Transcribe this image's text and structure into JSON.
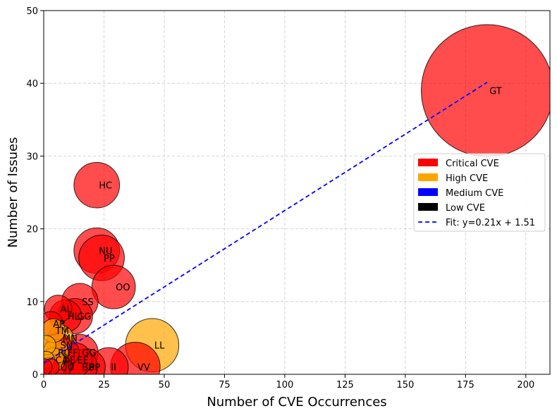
{
  "chart_data": {
    "type": "scatter",
    "variant": "bubble",
    "title": "",
    "xlabel": "Number of CVE Occurrences",
    "ylabel": "Number of Issues",
    "xlim": [
      0,
      210
    ],
    "ylim": [
      0,
      50
    ],
    "xticks": [
      0,
      25,
      50,
      75,
      100,
      125,
      150,
      175,
      200
    ],
    "yticks": [
      0,
      10,
      20,
      30,
      40,
      50
    ],
    "grid": true,
    "legend_position": "center-right",
    "colors": {
      "critical": "#ff0000",
      "high": "#ffa500",
      "medium": "#0000ff",
      "low": "#000000",
      "fit": "#0000ff"
    },
    "legend": [
      {
        "label": "Critical CVE",
        "color": "#ff0000",
        "kind": "patch"
      },
      {
        "label": "High CVE",
        "color": "#ffa500",
        "kind": "patch"
      },
      {
        "label": "Medium CVE",
        "color": "#0000ff",
        "kind": "patch"
      },
      {
        "label": "Low CVE",
        "color": "#000000",
        "kind": "patch"
      },
      {
        "label": "Fit: y=0.21x + 1.51",
        "color": "#0000ff",
        "kind": "line"
      }
    ],
    "fit": {
      "slope": 0.21,
      "intercept": 1.51,
      "x_range": [
        0,
        184
      ]
    },
    "points": [
      {
        "label": "GT",
        "x": 184,
        "y": 39,
        "severity": "critical",
        "size": 184
      },
      {
        "label": "HC",
        "x": 22,
        "y": 26,
        "severity": "critical",
        "size": 22
      },
      {
        "label": "NU",
        "x": 22,
        "y": 17,
        "severity": "critical",
        "size": 22
      },
      {
        "label": "PP",
        "x": 24,
        "y": 16,
        "severity": "critical",
        "size": 22
      },
      {
        "label": "OO",
        "x": 29,
        "y": 12,
        "severity": "critical",
        "size": 20
      },
      {
        "label": "SS",
        "x": 15,
        "y": 10,
        "severity": "critical",
        "size": 14
      },
      {
        "label": "GG",
        "x": 13,
        "y": 8,
        "severity": "critical",
        "size": 13
      },
      {
        "label": "HL",
        "x": 9,
        "y": 8,
        "severity": "critical",
        "size": 11
      },
      {
        "label": "AL",
        "x": 6,
        "y": 9,
        "severity": "critical",
        "size": 8
      },
      {
        "label": "AP",
        "x": 3,
        "y": 7,
        "severity": "critical",
        "size": 6
      },
      {
        "label": "LL",
        "x": 45,
        "y": 4,
        "severity": "high",
        "size": 30
      },
      {
        "label": "VV",
        "x": 38,
        "y": 1,
        "severity": "critical",
        "size": 26
      },
      {
        "label": "II",
        "x": 27,
        "y": 1,
        "severity": "critical",
        "size": 16
      },
      {
        "label": "GG",
        "x": 15,
        "y": 3,
        "severity": "critical",
        "size": 14
      },
      {
        "label": "BB",
        "x": 15,
        "y": 1,
        "severity": "critical",
        "size": 13
      },
      {
        "label": "PP",
        "x": 18,
        "y": 1,
        "severity": "critical",
        "size": 14
      },
      {
        "label": "EE",
        "x": 13,
        "y": 2,
        "severity": "critical",
        "size": 12
      },
      {
        "label": "TM",
        "x": 4,
        "y": 6,
        "severity": "high",
        "size": 6
      },
      {
        "label": "MN",
        "x": 7,
        "y": 5,
        "severity": "high",
        "size": 7
      },
      {
        "label": "SN",
        "x": 6,
        "y": 4,
        "severity": "critical",
        "size": 7
      },
      {
        "label": "RC",
        "x": 5,
        "y": 3,
        "severity": "high",
        "size": 7
      },
      {
        "label": "DE",
        "x": 7,
        "y": 2,
        "severity": "critical",
        "size": 8
      },
      {
        "label": "CA",
        "x": 4,
        "y": 2,
        "severity": "high",
        "size": 6
      },
      {
        "label": "FF",
        "x": 9,
        "y": 3,
        "severity": "critical",
        "size": 8
      },
      {
        "label": "QU",
        "x": 6,
        "y": 1,
        "severity": "critical",
        "size": 7
      },
      {
        "label": "",
        "x": 2,
        "y": 1,
        "severity": "critical",
        "size": 4
      },
      {
        "label": "",
        "x": 1,
        "y": 4,
        "severity": "high",
        "size": 4
      },
      {
        "label": "",
        "x": 1,
        "y": 2,
        "severity": "high",
        "size": 3
      },
      {
        "label": "",
        "x": 3,
        "y": 1,
        "severity": "critical",
        "size": 3
      },
      {
        "label": "",
        "x": 0,
        "y": 1,
        "severity": "critical",
        "size": 3
      }
    ]
  }
}
